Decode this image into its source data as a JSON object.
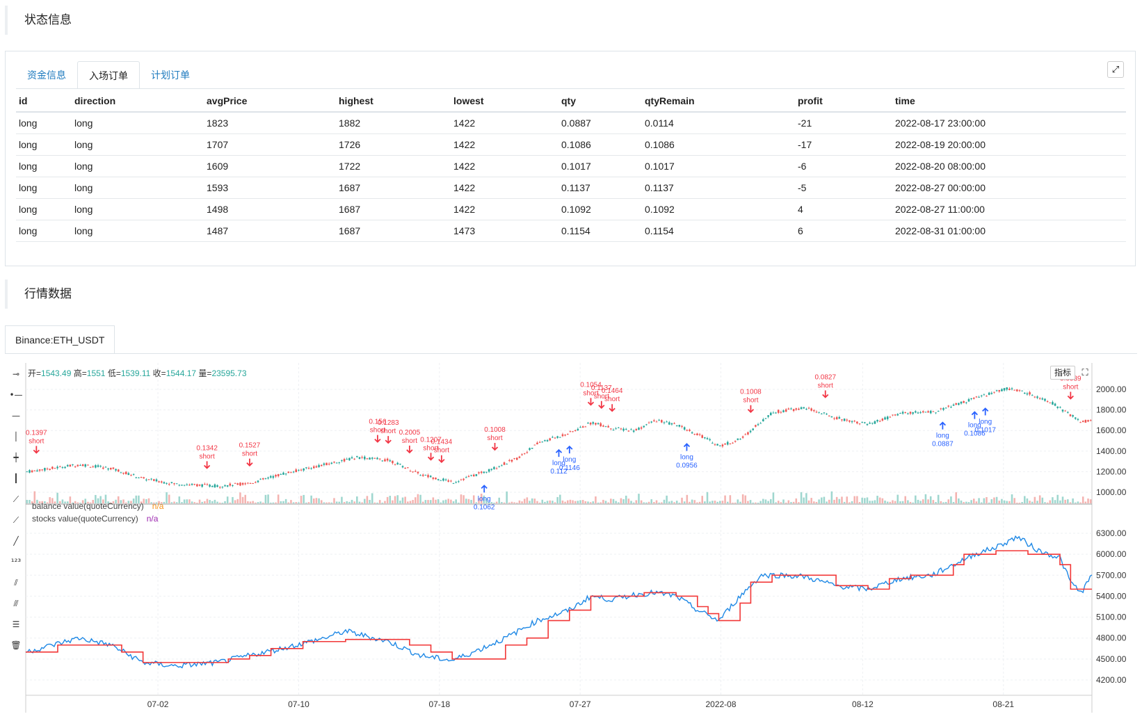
{
  "sections": {
    "status_title": "状态信息",
    "market_title": "行情数据"
  },
  "tabs": [
    {
      "label": "资金信息",
      "active": false
    },
    {
      "label": "入场订单",
      "active": true
    },
    {
      "label": "计划订单",
      "active": false
    }
  ],
  "orders": {
    "columns": [
      "id",
      "direction",
      "avgPrice",
      "highest",
      "lowest",
      "qty",
      "qtyRemain",
      "profit",
      "time"
    ],
    "rows": [
      [
        "long",
        "long",
        "1823",
        "1882",
        "1422",
        "0.0887",
        "0.0114",
        "-21",
        "2022-08-17 23:00:00"
      ],
      [
        "long",
        "long",
        "1707",
        "1726",
        "1422",
        "0.1086",
        "0.1086",
        "-17",
        "2022-08-19 20:00:00"
      ],
      [
        "long",
        "long",
        "1609",
        "1722",
        "1422",
        "0.1017",
        "0.1017",
        "-6",
        "2022-08-20 08:00:00"
      ],
      [
        "long",
        "long",
        "1593",
        "1687",
        "1422",
        "0.1137",
        "0.1137",
        "-5",
        "2022-08-27 00:00:00"
      ],
      [
        "long",
        "long",
        "1498",
        "1687",
        "1422",
        "0.1092",
        "0.1092",
        "4",
        "2022-08-27 11:00:00"
      ],
      [
        "long",
        "long",
        "1487",
        "1687",
        "1473",
        "0.1154",
        "0.1154",
        "6",
        "2022-08-31 01:00:00"
      ]
    ]
  },
  "market": {
    "symbol_tab": "Binance:ETH_USDT",
    "ohlc": {
      "open_label": "开=",
      "open": "1543.49",
      "high_label": "高=",
      "high": "1551",
      "low_label": "低=",
      "low": "1539.11",
      "close_label": "收=",
      "close": "1544.17",
      "vol_label": "量=",
      "vol": "23595.73"
    },
    "indicator_button": "指标",
    "legend": [
      {
        "name": "balance value(quoteCurrency)",
        "value": "n/a"
      },
      {
        "name": "stocks value(quoteCurrency)",
        "value": "n/a"
      }
    ]
  },
  "chart_data": {
    "type": "candlestick",
    "price_axis": {
      "ticks": [
        1000,
        1200,
        1400,
        1600,
        1800,
        2000
      ],
      "labels": [
        "1000.00",
        "1200.00",
        "1400.00",
        "1600.00",
        "1800.00",
        "2000.00"
      ]
    },
    "value_axis": {
      "ticks": [
        4200,
        4500,
        4800,
        5100,
        5400,
        5700,
        6000,
        6300
      ],
      "labels": [
        "4200.00",
        "4500.00",
        "4800.00",
        "5100.00",
        "5400.00",
        "5700.00",
        "6000.00",
        "6300.00"
      ]
    },
    "x_ticks": [
      "07-02",
      "07-10",
      "07-18",
      "07-27",
      "2022-08",
      "08-12",
      "08-21"
    ],
    "price_path": [
      [
        0,
        1200
      ],
      [
        0.05,
        1270
      ],
      [
        0.08,
        1230
      ],
      [
        0.11,
        1130
      ],
      [
        0.14,
        1080
      ],
      [
        0.18,
        1060
      ],
      [
        0.21,
        1090
      ],
      [
        0.24,
        1180
      ],
      [
        0.28,
        1270
      ],
      [
        0.31,
        1340
      ],
      [
        0.34,
        1310
      ],
      [
        0.37,
        1170
      ],
      [
        0.4,
        1100
      ],
      [
        0.43,
        1200
      ],
      [
        0.46,
        1330
      ],
      [
        0.48,
        1480
      ],
      [
        0.51,
        1580
      ],
      [
        0.53,
        1680
      ],
      [
        0.55,
        1620
      ],
      [
        0.57,
        1600
      ],
      [
        0.59,
        1700
      ],
      [
        0.61,
        1650
      ],
      [
        0.63,
        1560
      ],
      [
        0.65,
        1450
      ],
      [
        0.67,
        1520
      ],
      [
        0.69,
        1700
      ],
      [
        0.7,
        1780
      ],
      [
        0.73,
        1820
      ],
      [
        0.76,
        1720
      ],
      [
        0.79,
        1660
      ],
      [
        0.82,
        1770
      ],
      [
        0.85,
        1780
      ],
      [
        0.88,
        1880
      ],
      [
        0.9,
        1950
      ],
      [
        0.92,
        2010
      ],
      [
        0.94,
        1960
      ],
      [
        0.96,
        1880
      ],
      [
        0.98,
        1740
      ],
      [
        0.99,
        1680
      ],
      [
        1.0,
        1710
      ]
    ],
    "balance_path": [
      [
        0,
        4600
      ],
      [
        0.05,
        4800
      ],
      [
        0.08,
        4700
      ],
      [
        0.11,
        4450
      ],
      [
        0.14,
        4400
      ],
      [
        0.18,
        4450
      ],
      [
        0.21,
        4550
      ],
      [
        0.24,
        4650
      ],
      [
        0.28,
        4800
      ],
      [
        0.3,
        4900
      ],
      [
        0.34,
        4750
      ],
      [
        0.37,
        4550
      ],
      [
        0.4,
        4480
      ],
      [
        0.42,
        4600
      ],
      [
        0.45,
        4800
      ],
      [
        0.48,
        5050
      ],
      [
        0.51,
        5200
      ],
      [
        0.53,
        5400
      ],
      [
        0.55,
        5350
      ],
      [
        0.57,
        5420
      ],
      [
        0.59,
        5450
      ],
      [
        0.61,
        5400
      ],
      [
        0.63,
        5200
      ],
      [
        0.65,
        5050
      ],
      [
        0.67,
        5400
      ],
      [
        0.69,
        5700
      ],
      [
        0.71,
        5700
      ],
      [
        0.73,
        5680
      ],
      [
        0.76,
        5550
      ],
      [
        0.79,
        5500
      ],
      [
        0.82,
        5650
      ],
      [
        0.85,
        5700
      ],
      [
        0.87,
        5850
      ],
      [
        0.89,
        6000
      ],
      [
        0.91,
        6100
      ],
      [
        0.93,
        6250
      ],
      [
        0.95,
        6050
      ],
      [
        0.97,
        5950
      ],
      [
        0.98,
        5600
      ],
      [
        0.99,
        5450
      ],
      [
        1.0,
        5700
      ]
    ],
    "stocks_path": [
      [
        0,
        4600
      ],
      [
        0.03,
        4700
      ],
      [
        0.08,
        4700
      ],
      [
        0.09,
        4600
      ],
      [
        0.11,
        4450
      ],
      [
        0.16,
        4450
      ],
      [
        0.19,
        4500
      ],
      [
        0.21,
        4550
      ],
      [
        0.23,
        4650
      ],
      [
        0.26,
        4750
      ],
      [
        0.3,
        4780
      ],
      [
        0.34,
        4780
      ],
      [
        0.36,
        4700
      ],
      [
        0.38,
        4600
      ],
      [
        0.4,
        4500
      ],
      [
        0.42,
        4500
      ],
      [
        0.45,
        4700
      ],
      [
        0.47,
        4800
      ],
      [
        0.49,
        5050
      ],
      [
        0.51,
        5200
      ],
      [
        0.53,
        5400
      ],
      [
        0.57,
        5400
      ],
      [
        0.58,
        5450
      ],
      [
        0.61,
        5400
      ],
      [
        0.63,
        5250
      ],
      [
        0.64,
        5150
      ],
      [
        0.65,
        5050
      ],
      [
        0.67,
        5300
      ],
      [
        0.68,
        5600
      ],
      [
        0.7,
        5700
      ],
      [
        0.73,
        5700
      ],
      [
        0.76,
        5550
      ],
      [
        0.79,
        5500
      ],
      [
        0.81,
        5650
      ],
      [
        0.83,
        5700
      ],
      [
        0.86,
        5700
      ],
      [
        0.87,
        5850
      ],
      [
        0.88,
        6000
      ],
      [
        0.91,
        6050
      ],
      [
        0.94,
        6000
      ],
      [
        0.96,
        6000
      ],
      [
        0.97,
        5850
      ],
      [
        0.98,
        5500
      ],
      [
        1.0,
        5500
      ]
    ],
    "signals": [
      {
        "side": "short",
        "qty": "0.1397",
        "x": 0.01
      },
      {
        "side": "short",
        "qty": "0.1342",
        "x": 0.17
      },
      {
        "side": "short",
        "qty": "0.1527",
        "x": 0.21
      },
      {
        "side": "short",
        "qty": "0.156",
        "x": 0.33
      },
      {
        "side": "short",
        "qty": "0.1283",
        "x": 0.34
      },
      {
        "side": "short",
        "qty": "0.2005",
        "x": 0.36
      },
      {
        "side": "short",
        "qty": "0.1207",
        "x": 0.38
      },
      {
        "side": "short",
        "qty": "0.1434",
        "x": 0.39
      },
      {
        "side": "short",
        "qty": "0.1008",
        "x": 0.44
      },
      {
        "side": "short",
        "qty": "0.1054",
        "x": 0.53
      },
      {
        "side": "short",
        "qty": "0.1137",
        "x": 0.54
      },
      {
        "side": "short",
        "qty": "0.1464",
        "x": 0.55
      },
      {
        "side": "short",
        "qty": "0.1008",
        "x": 0.68
      },
      {
        "side": "short",
        "qty": "0.0827",
        "x": 0.75
      },
      {
        "side": "short",
        "qty": "0.0939",
        "x": 0.98
      },
      {
        "side": "long",
        "qty": "0.1062",
        "x": 0.43
      },
      {
        "side": "long",
        "qty": "0.112",
        "x": 0.5
      },
      {
        "side": "long",
        "qty": "0.1146",
        "x": 0.51
      },
      {
        "side": "long",
        "qty": "0.0956",
        "x": 0.62
      },
      {
        "side": "long",
        "qty": "0.0887",
        "x": 0.86
      },
      {
        "side": "long",
        "qty": "0.1086",
        "x": 0.89
      },
      {
        "side": "long",
        "qty": "0.1017",
        "x": 0.9
      }
    ],
    "colors": {
      "up": "#26a69a",
      "down": "#ef5350",
      "balance": "#f23636",
      "stocks": "#1e88e5",
      "short": "#f23645",
      "long": "#2962ff"
    }
  }
}
